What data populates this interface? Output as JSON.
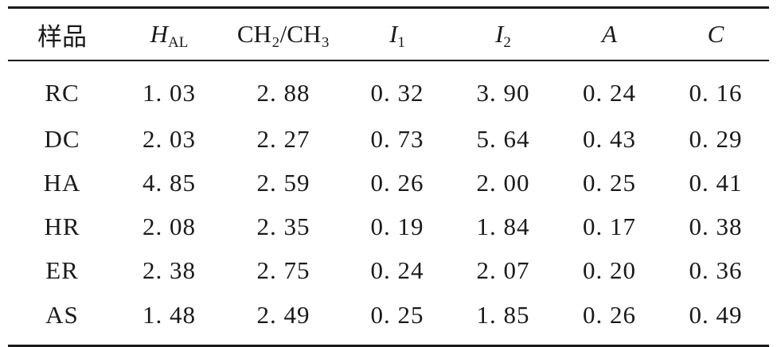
{
  "table": {
    "headers": [
      {
        "main": "样品",
        "sub": "",
        "italic": false
      },
      {
        "main": "H",
        "sub": "AL",
        "italic": true
      },
      {
        "main": "CH₂/CH₃",
        "sub": "",
        "italic": false
      },
      {
        "main": "I",
        "sub": "1",
        "italic": true
      },
      {
        "main": "I",
        "sub": "2",
        "italic": true
      },
      {
        "main": "A",
        "sub": "",
        "italic": true
      },
      {
        "main": "C",
        "sub": "",
        "italic": true
      }
    ],
    "rows": [
      [
        "RC",
        "1. 03",
        "2. 88",
        "0. 32",
        "3. 90",
        "0. 24",
        "0. 16"
      ],
      [
        "DC",
        "2. 03",
        "2. 27",
        "0. 73",
        "5. 64",
        "0. 43",
        "0. 29"
      ],
      [
        "HA",
        "4. 85",
        "2. 59",
        "0. 26",
        "2. 00",
        "0. 25",
        "0. 41"
      ],
      [
        "HR",
        "2. 08",
        "2. 35",
        "0. 19",
        "1. 84",
        "0. 17",
        "0. 38"
      ],
      [
        "ER",
        "2. 38",
        "2. 75",
        "0. 24",
        "2. 07",
        "0. 20",
        "0. 36"
      ],
      [
        "AS",
        "1. 48",
        "2. 49",
        "0. 25",
        "1. 85",
        "0. 26",
        "0. 49"
      ]
    ]
  }
}
